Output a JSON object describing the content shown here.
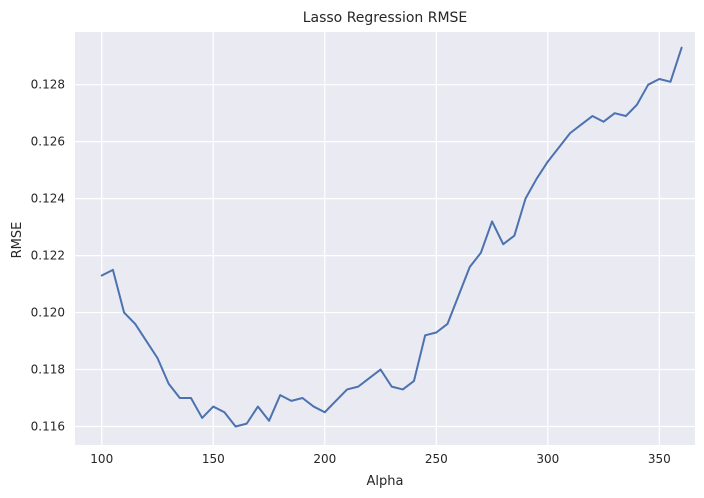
{
  "chart_data": {
    "type": "line",
    "title": "Lasso Regression RMSE",
    "xlabel": "Alpha",
    "ylabel": "RMSE",
    "xlim": [
      88,
      366
    ],
    "ylim": [
      0.11535,
      0.12985
    ],
    "xticks": [
      100,
      150,
      200,
      250,
      300,
      350
    ],
    "yticks": [
      0.116,
      0.118,
      0.12,
      0.122,
      0.124,
      0.126,
      0.128
    ],
    "ytick_labels": [
      "0.116",
      "0.118",
      "0.120",
      "0.122",
      "0.124",
      "0.126",
      "0.128"
    ],
    "grid": true,
    "legend": "none",
    "colors": {
      "background": "#eaeaf2",
      "grid": "#ffffff",
      "line": "#4c72b0",
      "text": "#262626"
    },
    "series": [
      {
        "x": [
          100,
          105,
          110,
          115,
          120,
          125,
          130,
          135,
          140,
          145,
          150,
          155,
          160,
          165,
          170,
          175,
          180,
          185,
          190,
          195,
          200,
          205,
          210,
          215,
          220,
          225,
          230,
          235,
          240,
          245,
          250,
          255,
          260,
          265,
          270,
          275,
          280,
          285,
          290,
          295,
          300,
          305,
          310,
          315,
          320,
          325,
          330,
          335,
          340,
          345,
          350,
          355,
          360
        ],
        "values": [
          0.1213,
          0.1215,
          0.12,
          0.1196,
          0.119,
          0.1184,
          0.1175,
          0.117,
          0.117,
          0.1163,
          0.1167,
          0.1165,
          0.116,
          0.1161,
          0.1167,
          0.1162,
          0.1171,
          0.1169,
          0.117,
          0.1167,
          0.1165,
          0.1169,
          0.1173,
          0.1174,
          0.1177,
          0.118,
          0.1174,
          0.1173,
          0.1176,
          0.1192,
          0.1193,
          0.1196,
          0.1206,
          0.1216,
          0.1221,
          0.1232,
          0.1224,
          0.1227,
          0.124,
          0.1247,
          0.1253,
          0.1258,
          0.1263,
          0.1266,
          0.1269,
          0.1267,
          0.127,
          0.1269,
          0.1273,
          0.128,
          0.1282,
          0.1281,
          0.1293
        ]
      }
    ]
  }
}
